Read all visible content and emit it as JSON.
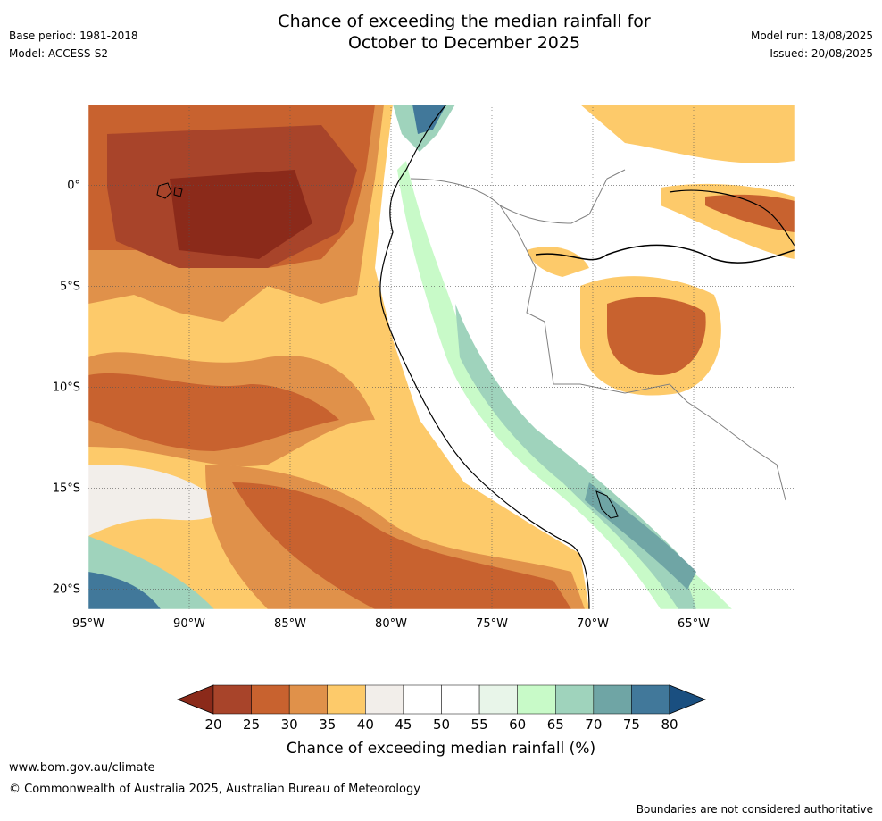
{
  "header": {
    "title_line1": "Chance of exceeding the median rainfall for",
    "title_line2": "October to December 2025",
    "base_period": "Base period: 1981-2018",
    "model": "Model: ACCESS-S2",
    "model_run": "Model run: 18/08/2025",
    "issued": "Issued: 20/08/2025"
  },
  "map": {
    "lon_range": [
      -95,
      -60
    ],
    "lat_range": [
      -21,
      4
    ],
    "lon_ticks": [
      {
        "value": -95,
        "label": "95°W"
      },
      {
        "value": -90,
        "label": "90°W"
      },
      {
        "value": -85,
        "label": "85°W"
      },
      {
        "value": -80,
        "label": "80°W"
      },
      {
        "value": -75,
        "label": "75°W"
      },
      {
        "value": -70,
        "label": "70°W"
      },
      {
        "value": -65,
        "label": "65°W"
      }
    ],
    "lat_ticks": [
      {
        "value": 0,
        "label": "0°"
      },
      {
        "value": -5,
        "label": "5°S"
      },
      {
        "value": -10,
        "label": "10°S"
      },
      {
        "value": -15,
        "label": "15°S"
      },
      {
        "value": -20,
        "label": "20°S"
      }
    ]
  },
  "colorbar": {
    "ticks": [
      "20",
      "25",
      "30",
      "35",
      "40",
      "45",
      "50",
      "55",
      "60",
      "65",
      "70",
      "75",
      "80"
    ],
    "low_extend_color": "#8b2a1a",
    "high_extend_color": "#1a4f80",
    "colors": [
      "#a8442a",
      "#c8622f",
      "#e0914a",
      "#fdca6a",
      "#f2eeea",
      "#ffffff",
      "#ffffff",
      "#e8f5e9",
      "#c8fac8",
      "#9fd3bc",
      "#6fa5a5",
      "#41789a"
    ],
    "label": "Chance of exceeding median rainfall (%)"
  },
  "footer": {
    "url": "www.bom.gov.au/climate",
    "copyright": "© Commonwealth of Australia 2025, Australian Bureau of Meteorology",
    "disclaimer": "Boundaries are not considered authoritative"
  }
}
